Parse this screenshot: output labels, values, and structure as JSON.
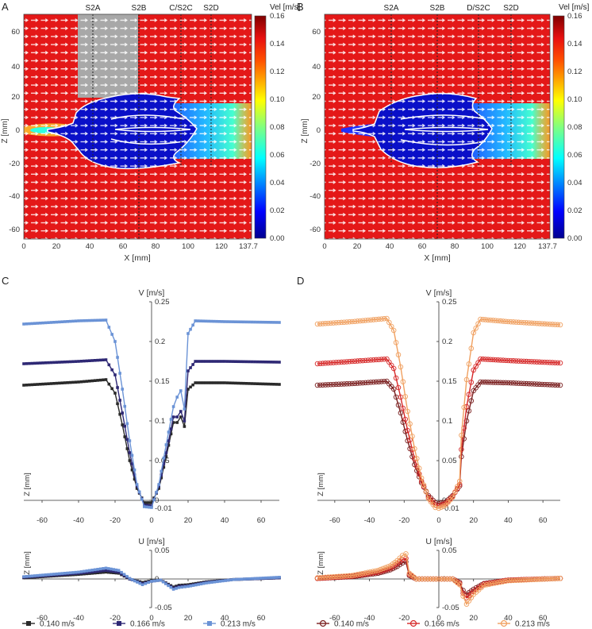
{
  "panel_labels": [
    "A",
    "B",
    "C",
    "D"
  ],
  "colorbar": {
    "title": "Vel [m/s]",
    "ticks": [
      "0.16",
      "0.14",
      "0.12",
      "0.10",
      "0.08",
      "0.06",
      "0.04",
      "0.02",
      "0.00"
    ],
    "colors": [
      "#00008f",
      "#0000ff",
      "#0080ff",
      "#00ffff",
      "#80ff80",
      "#ffff00",
      "#ff8000",
      "#ff0000",
      "#800000"
    ]
  },
  "field_panels": [
    {
      "label": "A",
      "xlabel": "X [mm]",
      "ylabel": "Z [mm]",
      "xticks": [
        "0",
        "20",
        "40",
        "60",
        "80",
        "100",
        "120",
        "137.7"
      ],
      "yticks": [
        "60",
        "40",
        "20",
        "0",
        "-20",
        "-40",
        "-60"
      ],
      "sections": [
        "S2A",
        "S2B",
        "C/S2C",
        "S2D"
      ],
      "has_support_block": true
    },
    {
      "label": "B",
      "xlabel": "X [mm]",
      "ylabel": "Z [mm]",
      "xticks": [
        "0",
        "20",
        "40",
        "60",
        "80",
        "100",
        "120",
        "137.7"
      ],
      "yticks": [
        "60",
        "40",
        "20",
        "0",
        "-20",
        "-40",
        "-60"
      ],
      "sections": [
        "S2A",
        "S2B",
        "D/S2C",
        "S2D"
      ],
      "has_support_block": false
    }
  ],
  "chart_data": [
    {
      "panel": "C",
      "type": "line",
      "ylabel": "V [m/s]",
      "xlabel_side": "Z [mm]",
      "xlim": [
        -70,
        70
      ],
      "ylim": [
        -0.01,
        0.25
      ],
      "xticks": [
        "-60",
        "-40",
        "-20",
        "0",
        "20",
        "40",
        "60"
      ],
      "yticks": [
        "0.25",
        "0.2",
        "0.15",
        "0.1",
        "0.05",
        "0",
        "-0.01"
      ],
      "marker": "square",
      "series": [
        {
          "name": "0.140 m/s",
          "color": "#2a2a2a",
          "x": [
            -70,
            -40,
            -25,
            -20,
            -16,
            -12,
            -8,
            -4,
            0,
            4,
            8,
            12,
            14,
            16,
            18,
            20,
            24,
            40,
            70
          ],
          "y": [
            0.145,
            0.149,
            0.152,
            0.135,
            0.095,
            0.05,
            0.015,
            -0.003,
            -0.003,
            0.015,
            0.055,
            0.098,
            0.098,
            0.105,
            0.093,
            0.14,
            0.148,
            0.148,
            0.146
          ]
        },
        {
          "name": "0.166 m/s",
          "color": "#2e2874",
          "x": [
            -70,
            -40,
            -25,
            -20,
            -16,
            -12,
            -8,
            -4,
            0,
            4,
            8,
            12,
            14,
            16,
            18,
            20,
            24,
            40,
            70
          ],
          "y": [
            0.172,
            0.175,
            0.177,
            0.158,
            0.11,
            0.06,
            0.018,
            -0.006,
            -0.007,
            0.018,
            0.06,
            0.105,
            0.105,
            0.112,
            0.1,
            0.163,
            0.175,
            0.175,
            0.174
          ]
        },
        {
          "name": "0.213 m/s",
          "color": "#6b93d6",
          "x": [
            -70,
            -40,
            -25,
            -20,
            -16,
            -12,
            -8,
            -4,
            0,
            4,
            8,
            12,
            14,
            16,
            18,
            20,
            24,
            40,
            70
          ],
          "y": [
            0.222,
            0.226,
            0.227,
            0.2,
            0.14,
            0.075,
            0.02,
            -0.008,
            -0.009,
            0.02,
            0.07,
            0.118,
            0.13,
            0.138,
            0.115,
            0.21,
            0.226,
            0.225,
            0.224
          ]
        }
      ]
    },
    {
      "panel": "C-U",
      "type": "line",
      "ylabel": "U [m/s]",
      "xlabel_side": "Z [mm]",
      "xlim": [
        -70,
        70
      ],
      "ylim": [
        -0.05,
        0.05
      ],
      "xticks": [
        "-60",
        "-40",
        "-20",
        "0",
        "20",
        "40",
        "60"
      ],
      "yticks": [
        "0.05",
        "0",
        "-0.05"
      ],
      "marker": "square",
      "series": [
        {
          "name": "0.140 m/s",
          "color": "#2a2a2a",
          "x": [
            -70,
            -40,
            -25,
            -18,
            -12,
            -5,
            0,
            5,
            12,
            15,
            20,
            30,
            45,
            70
          ],
          "y": [
            0.002,
            0.008,
            0.012,
            0.01,
            0.0,
            -0.006,
            -0.003,
            -0.002,
            -0.014,
            -0.011,
            -0.01,
            -0.005,
            -0.001,
            0.002
          ]
        },
        {
          "name": "0.166 m/s",
          "color": "#2e2874",
          "x": [
            -70,
            -40,
            -25,
            -18,
            -12,
            -5,
            0,
            5,
            12,
            15,
            20,
            30,
            45,
            70
          ],
          "y": [
            0.003,
            0.01,
            0.015,
            0.012,
            0.0,
            -0.008,
            -0.004,
            -0.002,
            -0.016,
            -0.013,
            -0.012,
            -0.006,
            -0.001,
            0.002
          ]
        },
        {
          "name": "0.213 m/s",
          "color": "#6b93d6",
          "x": [
            -70,
            -40,
            -25,
            -18,
            -12,
            -5,
            0,
            5,
            12,
            15,
            20,
            30,
            45,
            70
          ],
          "y": [
            0.004,
            0.012,
            0.019,
            0.015,
            0.001,
            -0.01,
            -0.004,
            -0.002,
            -0.018,
            -0.015,
            -0.013,
            -0.007,
            -0.001,
            0.003
          ]
        }
      ]
    },
    {
      "panel": "D",
      "type": "line",
      "ylabel": "V [m/s]",
      "xlabel_side": "Z [mm]",
      "xlim": [
        -70,
        70
      ],
      "ylim": [
        -0.01,
        0.25
      ],
      "xticks": [
        "-60",
        "-40",
        "-20",
        "0",
        "20",
        "40",
        "60"
      ],
      "yticks": [
        "0.25",
        "0.2",
        "0.15",
        "0.1",
        "0.05",
        "0",
        "-0.01"
      ],
      "marker": "circle",
      "series": [
        {
          "name": "0.140 m/s",
          "color": "#7a1f1f",
          "x": [
            -70,
            -50,
            -30,
            -26,
            -22,
            -18,
            -14,
            -10,
            -6,
            -2,
            0,
            4,
            8,
            12,
            13,
            16,
            20,
            24,
            40,
            70
          ],
          "y": [
            0.145,
            0.147,
            0.15,
            0.14,
            0.11,
            0.075,
            0.045,
            0.022,
            0.006,
            -0.003,
            -0.004,
            -0.002,
            0.006,
            0.018,
            0.055,
            0.1,
            0.138,
            0.149,
            0.148,
            0.145
          ]
        },
        {
          "name": "0.166 m/s",
          "color": "#d62828",
          "x": [
            -70,
            -50,
            -30,
            -26,
            -22,
            -18,
            -14,
            -10,
            -6,
            -2,
            0,
            4,
            8,
            12,
            13,
            16,
            20,
            24,
            40,
            70
          ],
          "y": [
            0.172,
            0.175,
            0.178,
            0.166,
            0.13,
            0.088,
            0.052,
            0.024,
            0.004,
            -0.006,
            -0.007,
            -0.004,
            0.005,
            0.02,
            0.064,
            0.118,
            0.164,
            0.178,
            0.176,
            0.173
          ]
        },
        {
          "name": "0.213 m/s",
          "color": "#f0a060",
          "x": [
            -70,
            -50,
            -30,
            -26,
            -22,
            -18,
            -14,
            -10,
            -6,
            -2,
            0,
            4,
            8,
            12,
            13,
            16,
            20,
            24,
            40,
            70
          ],
          "y": [
            0.222,
            0.225,
            0.229,
            0.214,
            0.168,
            0.112,
            0.065,
            0.028,
            0.002,
            -0.009,
            -0.01,
            -0.006,
            0.004,
            0.024,
            0.082,
            0.152,
            0.211,
            0.228,
            0.225,
            0.221
          ]
        }
      ]
    },
    {
      "panel": "D-U",
      "type": "line",
      "ylabel": "U [m/s]",
      "xlabel_side": "Z [mm]",
      "xlim": [
        -70,
        70
      ],
      "ylim": [
        -0.05,
        0.05
      ],
      "xticks": [
        "-60",
        "-40",
        "-20",
        "0",
        "20",
        "40",
        "60"
      ],
      "yticks": [
        "0.05",
        "0",
        "-0.05"
      ],
      "marker": "circle",
      "series": [
        {
          "name": "0.140 m/s",
          "color": "#7a1f1f",
          "x": [
            -70,
            -50,
            -35,
            -28,
            -24,
            -21,
            -19,
            -17,
            -13,
            -8,
            0,
            8,
            12,
            14,
            16,
            20,
            26,
            40,
            70
          ],
          "y": [
            0.001,
            0.004,
            0.01,
            0.016,
            0.022,
            0.028,
            0.03,
            0.006,
            0.0,
            0.0,
            0.0,
            0.0,
            -0.006,
            -0.02,
            -0.027,
            -0.018,
            -0.008,
            -0.002,
            0.001
          ]
        },
        {
          "name": "0.166 m/s",
          "color": "#d62828",
          "x": [
            -70,
            -50,
            -35,
            -28,
            -24,
            -21,
            -19,
            -17,
            -13,
            -8,
            0,
            8,
            12,
            14,
            16,
            20,
            26,
            40,
            70
          ],
          "y": [
            0.001,
            0.005,
            0.012,
            0.019,
            0.027,
            0.034,
            0.036,
            0.008,
            0.0,
            0.0,
            0.0,
            0.0,
            -0.008,
            -0.025,
            -0.033,
            -0.022,
            -0.009,
            -0.002,
            0.001
          ]
        },
        {
          "name": "0.213 m/s",
          "color": "#f0a060",
          "x": [
            -70,
            -50,
            -35,
            -28,
            -24,
            -21,
            -19,
            -17,
            -13,
            -8,
            0,
            8,
            12,
            14,
            16,
            20,
            26,
            40,
            70
          ],
          "y": [
            0.002,
            0.006,
            0.015,
            0.023,
            0.032,
            0.041,
            0.044,
            0.01,
            0.0,
            0.0,
            0.0,
            0.0,
            -0.01,
            -0.03,
            -0.044,
            -0.027,
            -0.011,
            -0.003,
            0.001
          ]
        }
      ]
    }
  ]
}
